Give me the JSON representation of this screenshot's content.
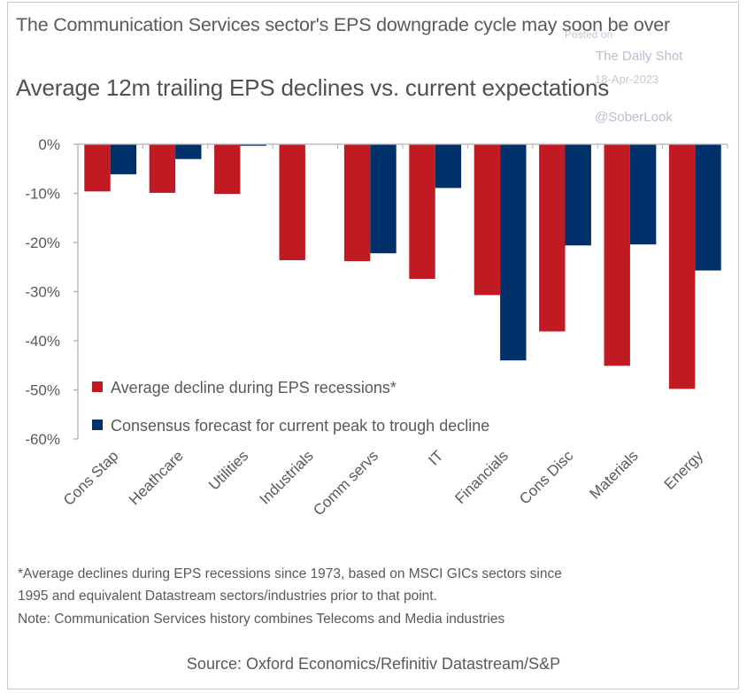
{
  "title": "The Communication Services sector's EPS downgrade cycle may soon be over",
  "watermark": {
    "posted": "Posted on",
    "publisher": "The Daily Shot",
    "date": "18-Apr-2023",
    "handle": "@SoberLook"
  },
  "footnotes": [
    "*Average declines during EPS recessions since 1973, based on MSCI GICs sectors since",
    "1995 and equivalent Datastream sectors/industries prior to that point.",
    "Note: Communication Services history combines Telecoms and Media industries"
  ],
  "source": "Source: Oxford Economics/Refinitiv Datastream/S&P",
  "chart_data": {
    "type": "bar",
    "title": "Average 12m trailing EPS declines vs. current expectations",
    "xlabel": "",
    "ylabel": "",
    "ylim": [
      -60,
      0
    ],
    "yticks": [
      0,
      -10,
      -20,
      -30,
      -40,
      -50,
      -60
    ],
    "ytick_labels": [
      "0%",
      "-10%",
      "-20%",
      "-30%",
      "-40%",
      "-50%",
      "-60%"
    ],
    "grid": false,
    "legend_position": "bottom-left",
    "categories": [
      "Cons Stap",
      "Heathcare",
      "Utilities",
      "Industrials",
      "Comm servs",
      "IT",
      "Financials",
      "Cons Disc",
      "Materials",
      "Energy"
    ],
    "series": [
      {
        "name": "Average decline during EPS recessions*",
        "color": "#c01a22",
        "values": [
          -9.6,
          -9.9,
          -10.1,
          -23.6,
          -23.8,
          -27.4,
          -30.7,
          -38.1,
          -45.1,
          -49.8
        ]
      },
      {
        "name": "Consensus forecast for current peak to trough decline",
        "color": "#00306a",
        "values": [
          -6.1,
          -3.0,
          -0.3,
          null,
          -22.2,
          -8.9,
          -44.0,
          -20.6,
          -20.4,
          -25.7
        ]
      }
    ]
  }
}
